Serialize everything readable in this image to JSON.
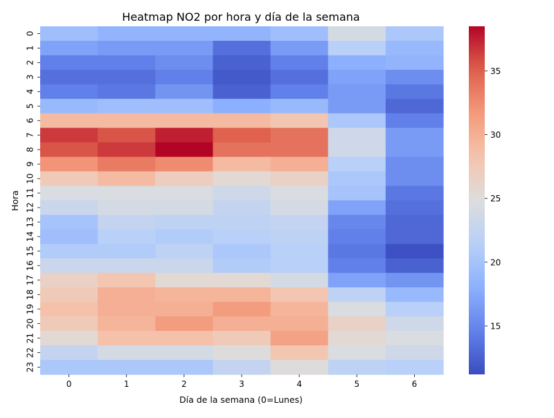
{
  "chart_data": {
    "type": "heatmap",
    "title": "Heatmap NO2 por hora y día de la semana",
    "xlabel": "Día de la semana (0=Lunes)",
    "ylabel": "Hora",
    "x_categories": [
      "0",
      "1",
      "2",
      "3",
      "4",
      "5",
      "6"
    ],
    "y_categories": [
      "0",
      "1",
      "2",
      "3",
      "4",
      "5",
      "6",
      "7",
      "8",
      "9",
      "10",
      "11",
      "12",
      "13",
      "14",
      "15",
      "16",
      "17",
      "18",
      "19",
      "20",
      "21",
      "22",
      "23"
    ],
    "values": [
      [
        19.5,
        18.5,
        18.5,
        18.5,
        19.5,
        24.0,
        20.5
      ],
      [
        17.0,
        16.5,
        16.5,
        13.5,
        16.5,
        21.5,
        19.0
      ],
      [
        14.5,
        14.5,
        15.5,
        12.5,
        14.5,
        18.0,
        18.5
      ],
      [
        13.5,
        13.5,
        14.5,
        12.0,
        13.5,
        17.0,
        15.5
      ],
      [
        14.5,
        14.0,
        16.0,
        12.5,
        14.5,
        16.5,
        14.0
      ],
      [
        19.0,
        19.5,
        19.5,
        18.0,
        19.0,
        16.5,
        13.0
      ],
      [
        29.0,
        29.0,
        29.0,
        29.0,
        28.0,
        20.5,
        14.5
      ],
      [
        36.5,
        35.5,
        37.5,
        35.0,
        34.0,
        23.5,
        16.5
      ],
      [
        35.5,
        36.5,
        38.5,
        34.0,
        34.0,
        23.5,
        16.5
      ],
      [
        32.0,
        33.5,
        32.5,
        29.0,
        30.0,
        21.5,
        15.5
      ],
      [
        27.5,
        29.0,
        27.0,
        25.5,
        26.5,
        20.5,
        15.5
      ],
      [
        24.5,
        24.5,
        24.5,
        23.5,
        24.5,
        20.0,
        14.0
      ],
      [
        23.0,
        24.0,
        24.0,
        22.5,
        24.0,
        17.0,
        13.5
      ],
      [
        20.0,
        22.5,
        22.0,
        22.0,
        22.5,
        15.0,
        13.0
      ],
      [
        19.5,
        21.5,
        21.0,
        21.5,
        22.0,
        14.5,
        13.0
      ],
      [
        21.0,
        21.0,
        22.0,
        20.5,
        21.5,
        14.0,
        11.5
      ],
      [
        23.0,
        23.0,
        23.0,
        21.0,
        21.5,
        14.5,
        12.5
      ],
      [
        26.5,
        28.0,
        25.5,
        25.5,
        24.0,
        17.0,
        16.0
      ],
      [
        27.5,
        30.0,
        29.5,
        29.5,
        28.0,
        22.0,
        19.0
      ],
      [
        28.5,
        30.0,
        30.0,
        31.5,
        29.5,
        24.5,
        21.5
      ],
      [
        27.5,
        29.5,
        31.5,
        30.0,
        30.0,
        26.5,
        23.5
      ],
      [
        25.5,
        28.5,
        28.5,
        27.5,
        31.0,
        25.5,
        24.5
      ],
      [
        22.5,
        24.0,
        24.0,
        25.0,
        28.0,
        24.5,
        23.5
      ],
      [
        20.5,
        20.5,
        20.5,
        22.5,
        25.0,
        22.0,
        21.5
      ]
    ],
    "vmin": 11.2,
    "vmax": 38.5,
    "colormap": "coolwarm",
    "colorbar_ticks": [
      "15",
      "20",
      "25",
      "30",
      "35"
    ],
    "grid": false,
    "legend": "colorbar-right"
  }
}
